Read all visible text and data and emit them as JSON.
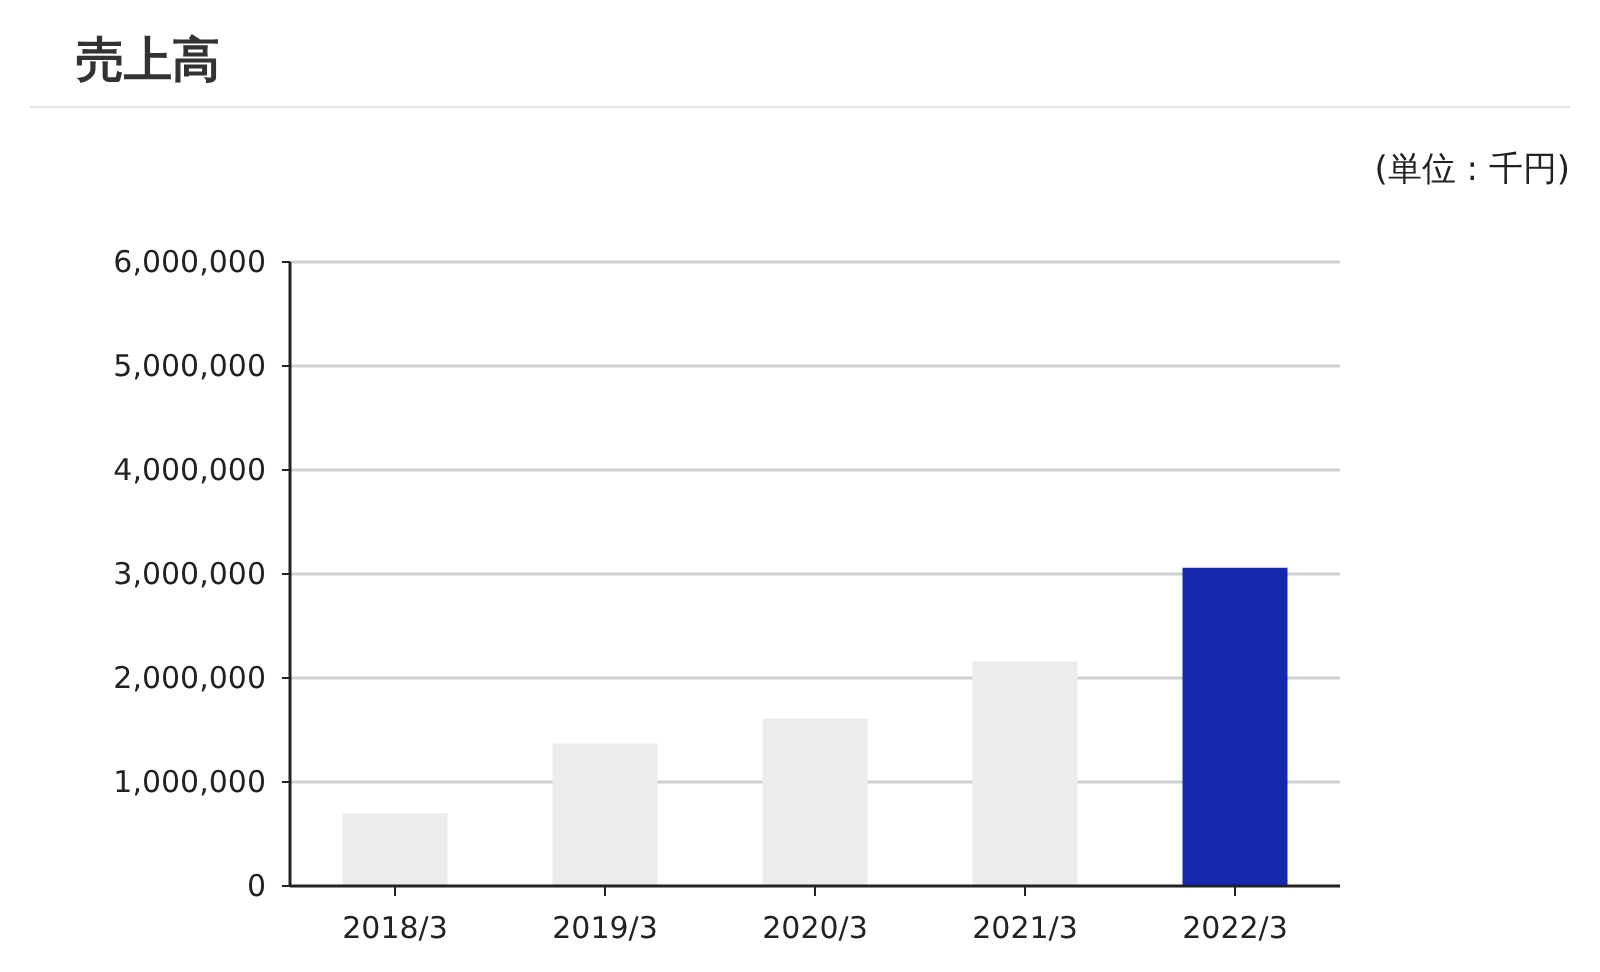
{
  "chart_data": {
    "type": "bar",
    "title": "売上高",
    "annotations": [
      "(単位 : 千円)"
    ],
    "categories": [
      "2018/3",
      "2019/3",
      "2020/3",
      "2021/3",
      "2022/3"
    ],
    "values": [
      700000,
      1370000,
      1610000,
      2160000,
      3060000
    ],
    "colors": [
      "#ececec",
      "#ececec",
      "#ececec",
      "#ececec",
      "#1428b0"
    ],
    "ylim": [
      0,
      6000000
    ],
    "yticks": [
      {
        "value": 0,
        "label": "0"
      },
      {
        "value": 1000000,
        "label": "1,000,000"
      },
      {
        "value": 2000000,
        "label": "2,000,000"
      },
      {
        "value": 3000000,
        "label": "3,000,000"
      },
      {
        "value": 4000000,
        "label": "4,000,000"
      },
      {
        "value": 5000000,
        "label": "5,000,000"
      },
      {
        "value": 6000000,
        "label": "6,000,000"
      }
    ],
    "grid": "y"
  }
}
